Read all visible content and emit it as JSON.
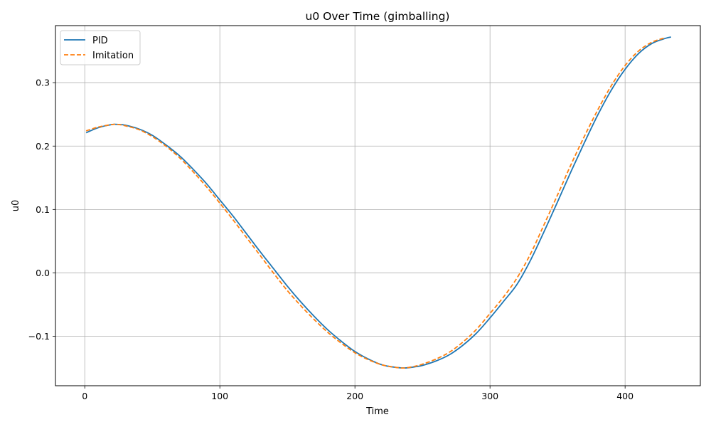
{
  "chart_data": {
    "type": "line",
    "title": "u0 Over Time (gimballing)",
    "xlabel": "Time",
    "ylabel": "u0",
    "xlim": [
      -21.7,
      455.7
    ],
    "ylim": [
      -0.178,
      0.39
    ],
    "xticks": [
      0,
      100,
      200,
      300,
      400
    ],
    "xtick_labels": [
      "0",
      "100",
      "200",
      "300",
      "400"
    ],
    "yticks": [
      -0.1,
      0.0,
      0.1,
      0.2,
      0.3
    ],
    "ytick_labels": [
      "−0.1",
      "0.0",
      "0.1",
      "0.2",
      "0.3"
    ],
    "grid": true,
    "legend": "top-left",
    "series": [
      {
        "name": "PID",
        "color": "#1f77b4",
        "style": "solid",
        "x": [
          1,
          10,
          20,
          25,
          30,
          40,
          50,
          60,
          70,
          80,
          90,
          100,
          110,
          120,
          130,
          140,
          150,
          160,
          170,
          180,
          190,
          200,
          210,
          220,
          230,
          237,
          245,
          250,
          260,
          270,
          280,
          290,
          300,
          310,
          320,
          330,
          340,
          350,
          360,
          370,
          380,
          390,
          400,
          410,
          420,
          430,
          434
        ],
        "y": [
          0.221,
          0.229,
          0.234,
          0.234,
          0.233,
          0.227,
          0.217,
          0.202,
          0.185,
          0.164,
          0.141,
          0.115,
          0.089,
          0.061,
          0.033,
          0.006,
          -0.021,
          -0.046,
          -0.069,
          -0.09,
          -0.108,
          -0.124,
          -0.136,
          -0.145,
          -0.149,
          -0.15,
          -0.148,
          -0.146,
          -0.139,
          -0.129,
          -0.114,
          -0.095,
          -0.071,
          -0.045,
          -0.018,
          0.02,
          0.065,
          0.112,
          0.16,
          0.206,
          0.25,
          0.289,
          0.321,
          0.346,
          0.362,
          0.37,
          0.372
        ]
      },
      {
        "name": "Imitation",
        "color": "#ff7f0e",
        "style": "dashed",
        "x": [
          1,
          10,
          20,
          25,
          30,
          40,
          50,
          60,
          70,
          80,
          90,
          100,
          110,
          120,
          130,
          140,
          150,
          160,
          170,
          180,
          190,
          200,
          210,
          220,
          230,
          237,
          245,
          250,
          260,
          270,
          280,
          290,
          300,
          310,
          320,
          330,
          340,
          350,
          360,
          370,
          380,
          390,
          400,
          410,
          420,
          430
        ],
        "y": [
          0.224,
          0.23,
          0.234,
          0.234,
          0.232,
          0.226,
          0.215,
          0.2,
          0.182,
          0.16,
          0.136,
          0.11,
          0.083,
          0.055,
          0.027,
          -0.001,
          -0.028,
          -0.052,
          -0.074,
          -0.094,
          -0.111,
          -0.126,
          -0.137,
          -0.145,
          -0.149,
          -0.15,
          -0.147,
          -0.144,
          -0.136,
          -0.125,
          -0.109,
          -0.089,
          -0.064,
          -0.038,
          -0.008,
          0.03,
          0.076,
          0.123,
          0.171,
          0.216,
          0.258,
          0.296,
          0.327,
          0.35,
          0.364,
          0.371
        ]
      }
    ]
  }
}
